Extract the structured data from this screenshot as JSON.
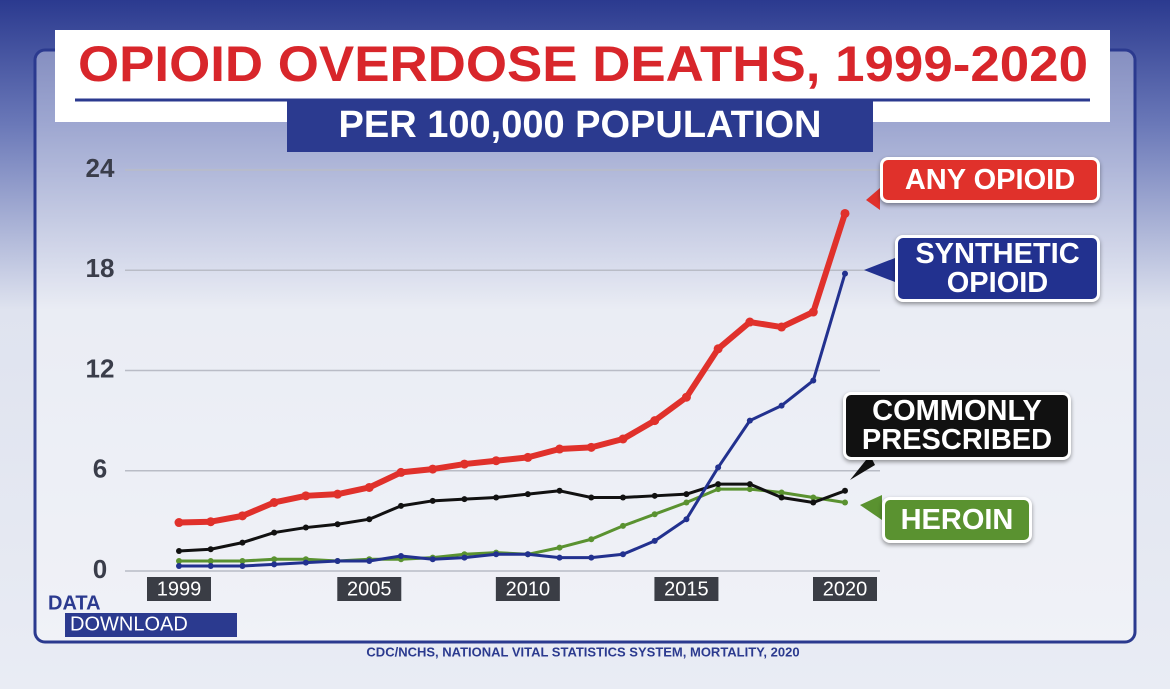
{
  "chart_data": {
    "type": "line",
    "title": "OPIOID OVERDOSE DEATHS, 1999-2020",
    "subtitle": "PER 100,000 POPULATION",
    "x": [
      1999,
      2000,
      2001,
      2002,
      2003,
      2004,
      2005,
      2006,
      2007,
      2008,
      2009,
      2010,
      2011,
      2012,
      2013,
      2014,
      2015,
      2016,
      2017,
      2018,
      2019,
      2020
    ],
    "xlim": [
      1999,
      2020
    ],
    "xticks": [
      1999,
      2005,
      2010,
      2015,
      2020
    ],
    "ylim": [
      0,
      24
    ],
    "yticks": [
      0,
      6,
      12,
      18,
      24
    ],
    "grid": true,
    "series": [
      {
        "name": "ANY OPIOID",
        "color": "#e0312b",
        "values": [
          2.9,
          2.95,
          3.3,
          4.1,
          4.5,
          4.6,
          5.0,
          5.9,
          6.1,
          6.4,
          6.6,
          6.8,
          7.3,
          7.4,
          7.9,
          9.0,
          10.4,
          13.3,
          14.9,
          14.6,
          15.5,
          21.4
        ]
      },
      {
        "name": "SYNTHETIC OPIOID",
        "color": "#22318f",
        "values": [
          0.3,
          0.3,
          0.3,
          0.4,
          0.5,
          0.6,
          0.6,
          0.9,
          0.7,
          0.8,
          1.0,
          1.0,
          0.8,
          0.8,
          1.0,
          1.8,
          3.1,
          6.2,
          9.0,
          9.9,
          11.4,
          17.8
        ]
      },
      {
        "name": "COMMONLY PRESCRIBED",
        "color": "#111111",
        "values": [
          1.2,
          1.3,
          1.7,
          2.3,
          2.6,
          2.8,
          3.1,
          3.9,
          4.2,
          4.3,
          4.4,
          4.6,
          4.8,
          4.4,
          4.4,
          4.5,
          4.6,
          5.2,
          5.2,
          4.4,
          4.1,
          4.8
        ]
      },
      {
        "name": "HEROIN",
        "color": "#5a9230",
        "values": [
          0.6,
          0.6,
          0.6,
          0.7,
          0.7,
          0.6,
          0.7,
          0.7,
          0.8,
          1.0,
          1.1,
          1.0,
          1.4,
          1.9,
          2.7,
          3.4,
          4.1,
          4.9,
          4.9,
          4.7,
          4.4,
          4.1
        ]
      }
    ],
    "logo": "DATA DOWNLOAD",
    "source": "CDC/NCHS, NATIONAL VITAL STATISTICS SYSTEM, MORTALITY, 2020"
  }
}
